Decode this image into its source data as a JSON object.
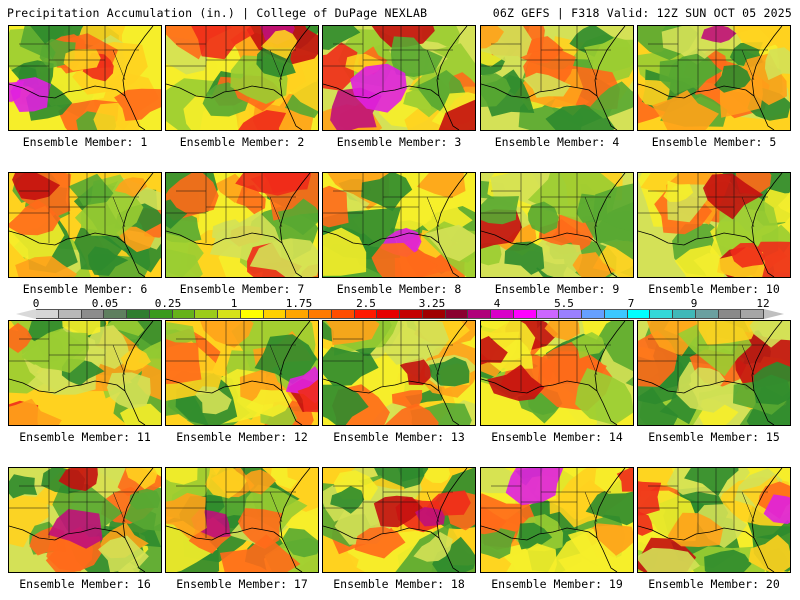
{
  "header": {
    "left_title": "Precipitation Accumulation (in.) | College of DuPage NEXLAB",
    "right_title": "06Z GEFS | F318 Valid: 12Z SUN OCT 05 2025"
  },
  "colorbar": {
    "tick_labels": [
      "0",
      "0.05",
      "0.25",
      "1",
      "1.75",
      "2.5",
      "3.25",
      "4",
      "5.5",
      "7",
      "9",
      "12"
    ],
    "colors": [
      "#d6d6d6",
      "#b8b8b8",
      "#8c8c8c",
      "#5f7f5f",
      "#2f7d2f",
      "#3a9a1c",
      "#66b21a",
      "#9ccc1a",
      "#d6e21a",
      "#ffff00",
      "#ffd000",
      "#ffa500",
      "#ff7a00",
      "#ff4d00",
      "#ff1a00",
      "#e60000",
      "#c40000",
      "#a00000",
      "#8a0030",
      "#b0007a",
      "#d800c8",
      "#ff00ff",
      "#cc66ff",
      "#9a80ff",
      "#66a0ff",
      "#3cc8ff",
      "#00ffff",
      "#33d8d8",
      "#40b8b8",
      "#6aa0a0",
      "#8a8a8a",
      "#a6a6a6"
    ]
  },
  "members": [
    {
      "label": "Ensemble Member: 1"
    },
    {
      "label": "Ensemble Member: 2"
    },
    {
      "label": "Ensemble Member: 3"
    },
    {
      "label": "Ensemble Member: 4"
    },
    {
      "label": "Ensemble Member: 5"
    },
    {
      "label": "Ensemble Member: 6"
    },
    {
      "label": "Ensemble Member: 7"
    },
    {
      "label": "Ensemble Member: 8"
    },
    {
      "label": "Ensemble Member: 9"
    },
    {
      "label": "Ensemble Member: 10"
    },
    {
      "label": "Ensemble Member: 11"
    },
    {
      "label": "Ensemble Member: 12"
    },
    {
      "label": "Ensemble Member: 13"
    },
    {
      "label": "Ensemble Member: 14"
    },
    {
      "label": "Ensemble Member: 15"
    },
    {
      "label": "Ensemble Member: 16"
    },
    {
      "label": "Ensemble Member: 17"
    },
    {
      "label": "Ensemble Member: 18"
    },
    {
      "label": "Ensemble Member: 19"
    },
    {
      "label": "Ensemble Member: 20"
    }
  ]
}
